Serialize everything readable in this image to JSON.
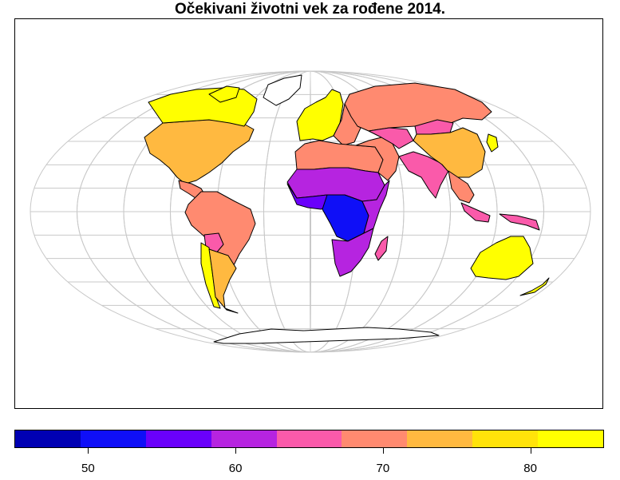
{
  "title": "Očekivani životni vek za rođene 2014.",
  "legend": {
    "colors": [
      "#0000b3",
      "#0f0ff7",
      "#6a00fb",
      "#b624e0",
      "#fa5aaa",
      "#ff8a70",
      "#ffb940",
      "#ffe30a",
      "#ffff00"
    ],
    "min": 45,
    "max": 85,
    "tick_values": [
      50,
      60,
      70,
      80
    ],
    "tick_labels": [
      "50",
      "60",
      "70",
      "80"
    ]
  },
  "map": {
    "projection": "mollweide",
    "graticule": true,
    "graticule_color": "#c8c8c8",
    "border_color": "#000000",
    "regions": [
      {
        "name": "North America",
        "color": "#ffb940"
      },
      {
        "name": "Canada",
        "color": "#ffff00"
      },
      {
        "name": "Central America",
        "color": "#ff8a70"
      },
      {
        "name": "South America",
        "color": "#ff8a70"
      },
      {
        "name": "Bolivia",
        "color": "#fa5aaa"
      },
      {
        "name": "Chile",
        "color": "#ffff00"
      },
      {
        "name": "Argentina",
        "color": "#ffb940"
      },
      {
        "name": "Western Europe",
        "color": "#ffff00"
      },
      {
        "name": "Eastern Europe",
        "color": "#ff8a70"
      },
      {
        "name": "Russia",
        "color": "#ff8a70"
      },
      {
        "name": "North Africa",
        "color": "#ff8a70"
      },
      {
        "name": "Sahel",
        "color": "#b624e0"
      },
      {
        "name": "West Africa",
        "color": "#6a00fb"
      },
      {
        "name": "Central Africa",
        "color": "#0f0ff7"
      },
      {
        "name": "East Africa",
        "color": "#b624e0"
      },
      {
        "name": "Southern Africa",
        "color": "#b624e0"
      },
      {
        "name": "Madagascar",
        "color": "#fa5aaa"
      },
      {
        "name": "Middle East",
        "color": "#ff8a70"
      },
      {
        "name": "Central Asia",
        "color": "#fa5aaa"
      },
      {
        "name": "Mongolia",
        "color": "#fa5aaa"
      },
      {
        "name": "India",
        "color": "#fa5aaa"
      },
      {
        "name": "China",
        "color": "#ffb940"
      },
      {
        "name": "Southeast Asia",
        "color": "#ff8a70"
      },
      {
        "name": "Indonesia",
        "color": "#fa5aaa"
      },
      {
        "name": "Japan",
        "color": "#ffff00"
      },
      {
        "name": "Australia",
        "color": "#ffff00"
      },
      {
        "name": "New Zealand",
        "color": "#ffff00"
      },
      {
        "name": "Greenland",
        "color": "#ffffff"
      },
      {
        "name": "Antarctica",
        "color": "#ffffff"
      }
    ]
  }
}
